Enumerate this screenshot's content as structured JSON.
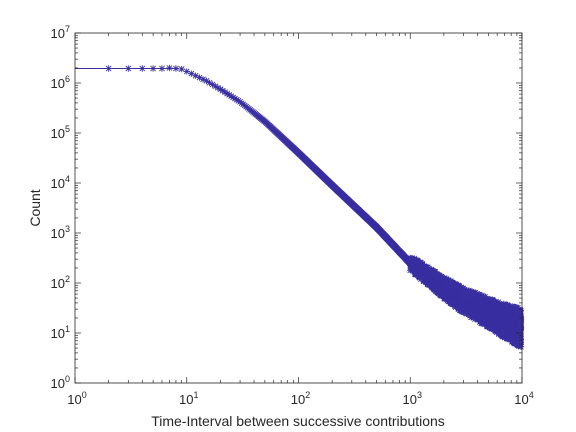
{
  "chart_data": {
    "type": "scatter",
    "title": "",
    "xlabel": "Time-Interval between successive contributions",
    "ylabel": "Count",
    "xscale": "log",
    "yscale": "log",
    "xlim": [
      1,
      10000
    ],
    "ylim": [
      1,
      10000000
    ],
    "x_ticks": [
      {
        "base": "10",
        "exp": "0"
      },
      {
        "base": "10",
        "exp": "1"
      },
      {
        "base": "10",
        "exp": "2"
      },
      {
        "base": "10",
        "exp": "3"
      },
      {
        "base": "10",
        "exp": "4"
      }
    ],
    "y_ticks": [
      {
        "base": "10",
        "exp": "0"
      },
      {
        "base": "10",
        "exp": "1"
      },
      {
        "base": "10",
        "exp": "2"
      },
      {
        "base": "10",
        "exp": "3"
      },
      {
        "base": "10",
        "exp": "4"
      },
      {
        "base": "10",
        "exp": "5"
      },
      {
        "base": "10",
        "exp": "6"
      },
      {
        "base": "10",
        "exp": "7"
      }
    ],
    "grid": false,
    "box": true,
    "marker": "asterisk",
    "series": [
      {
        "color": "#3a2fa0",
        "x": [
          1,
          1,
          2,
          3,
          4,
          5,
          6,
          7,
          8,
          9,
          10,
          12,
          15,
          20,
          30,
          50,
          100,
          200,
          500,
          1000,
          2000,
          5000,
          10000
        ],
        "y": [
          3200000,
          1900000,
          1950000,
          1950000,
          1950000,
          1950000,
          1950000,
          2000000,
          1950000,
          1900000,
          1700000,
          1400000,
          1100000,
          750000,
          420000,
          170000,
          40000,
          9000,
          1300,
          250,
          80,
          30,
          15
        ],
        "scatter_bounds": {
          "x": [
            1000,
            2000,
            3000,
            5000,
            7000,
            10000
          ],
          "y_low": [
            180,
            50,
            25,
            13,
            8,
            5
          ],
          "y_high": [
            350,
            130,
            80,
            50,
            38,
            30
          ]
        }
      }
    ]
  }
}
